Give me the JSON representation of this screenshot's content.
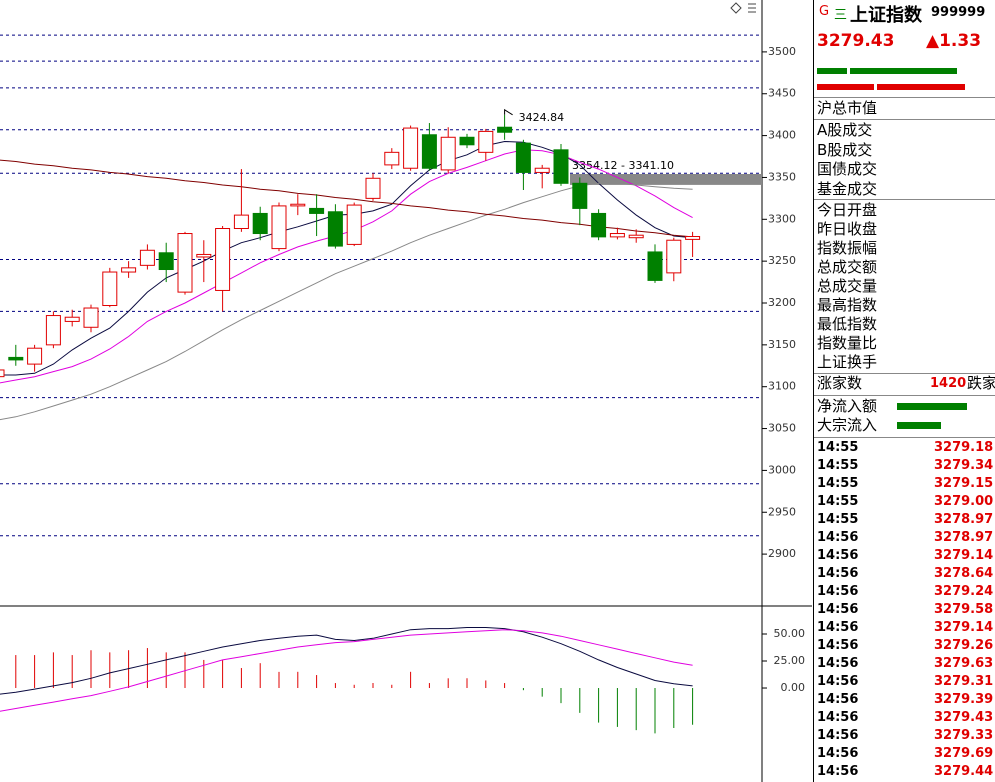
{
  "chart_data": [
    {
      "type": "candlestick",
      "categories": [
        null,
        null,
        null,
        null,
        null,
        null,
        null,
        null,
        null,
        null,
        null,
        null,
        null,
        null,
        null,
        null,
        null,
        null,
        null,
        null,
        null,
        null,
        null,
        null,
        null,
        null,
        null,
        null,
        null,
        null,
        null,
        null,
        null,
        null,
        null,
        null,
        null,
        null
      ],
      "open": [
        3112,
        3135,
        3127,
        3150,
        3178,
        3171,
        3197,
        3237,
        3245,
        3260,
        3213,
        3255,
        3215,
        3289,
        3307,
        3265,
        3316,
        3313,
        3309,
        3270,
        3325,
        3365,
        3361,
        3401,
        3359,
        3398,
        3380,
        3410,
        3391,
        3356,
        3383,
        3343,
        3307,
        3279,
        3278,
        3261,
        3236,
        3276
      ],
      "high": [
        3125,
        3150,
        3150,
        3190,
        3192,
        3198,
        3242,
        3250,
        3270,
        3272,
        3285,
        3275,
        3292,
        3360,
        3315,
        3320,
        3330,
        3330,
        3318,
        3320,
        3355,
        3385,
        3412,
        3415,
        3410,
        3402,
        3408,
        3424.84,
        3395,
        3365,
        3390,
        3350,
        3312,
        3290,
        3288,
        3270,
        3278,
        3285
      ],
      "low": [
        3108,
        3125,
        3118,
        3146,
        3172,
        3165,
        3195,
        3230,
        3240,
        3225,
        3210,
        3225,
        3190,
        3285,
        3275,
        3262,
        3305,
        3280,
        3265,
        3268,
        3322,
        3360,
        3358,
        3358,
        3355,
        3385,
        3370,
        3395,
        3335,
        3337,
        3340,
        3293,
        3275,
        3276,
        3272,
        3224,
        3226,
        3255
      ],
      "close": [
        3120,
        3132,
        3146,
        3185,
        3183,
        3194,
        3237,
        3242,
        3263,
        3240,
        3283,
        3258,
        3289,
        3305,
        3283,
        3316,
        3318,
        3307,
        3268,
        3317,
        3349,
        3380,
        3409,
        3361,
        3398,
        3389,
        3405,
        3404,
        3356,
        3361,
        3343,
        3313,
        3279,
        3283,
        3281,
        3227,
        3275,
        3279.43
      ],
      "up_color": "#e00000",
      "down_color": "#008000",
      "series": [
        {
          "color": "#0a0a40",
          "values": [
            3114,
            3114,
            3116,
            3127,
            3144,
            3158,
            3170,
            3190,
            3213,
            3230,
            3240,
            3250,
            3262,
            3272,
            3278,
            3285,
            3291,
            3298,
            3305,
            3306,
            3310,
            3318,
            3340,
            3359,
            3370,
            3377,
            3388,
            3393,
            3392,
            3386,
            3378,
            3365,
            3343,
            3323,
            3305,
            3290,
            3280,
            3278
          ]
        },
        {
          "color": "#e000e0",
          "values": [
            3104,
            3108,
            3112,
            3118,
            3124,
            3133,
            3145,
            3160,
            3178,
            3190,
            3200,
            3212,
            3224,
            3236,
            3248,
            3258,
            3267,
            3274,
            3280,
            3287,
            3297,
            3310,
            3330,
            3345,
            3355,
            3362,
            3370,
            3378,
            3383,
            3382,
            3377,
            3368,
            3360,
            3350,
            3340,
            3328,
            3314,
            3302
          ]
        },
        {
          "color": "#888888",
          "values": [
            3060,
            3064,
            3070,
            3077,
            3084,
            3091,
            3100,
            3110,
            3120,
            3130,
            3142,
            3155,
            3168,
            3180,
            3191,
            3202,
            3213,
            3224,
            3235,
            3244,
            3253,
            3262,
            3272,
            3281,
            3289,
            3297,
            3305,
            3312,
            3320,
            3327,
            3334,
            3340,
            3343,
            3343,
            3341,
            3339,
            3337,
            3336
          ]
        },
        {
          "color": "#800000",
          "values": [
            3371,
            3369,
            3366,
            3364,
            3361,
            3359,
            3356,
            3354,
            3351,
            3349,
            3346,
            3344,
            3341,
            3339,
            3336,
            3334,
            3331,
            3329,
            3326,
            3324,
            3321,
            3319,
            3316,
            3314,
            3311,
            3309,
            3306,
            3304,
            3301,
            3299,
            3296,
            3294,
            3291,
            3289,
            3286,
            3284,
            3281,
            3279
          ]
        }
      ],
      "level_lines": [
        3520,
        3489,
        3457,
        3407,
        3355,
        3252,
        3190,
        3087,
        2984,
        2922
      ],
      "level_color": "#000080",
      "band": [
        3354.12,
        3341.1
      ],
      "band_label": "3354.12 - 3341.10",
      "ylim": [
        2838,
        3562
      ],
      "yticks": [
        2900,
        2950,
        3000,
        3050,
        3100,
        3150,
        3200,
        3250,
        3300,
        3350,
        3400,
        3450,
        3500
      ]
    },
    {
      "type": "macd",
      "values": [
        28,
        30.5,
        30.5,
        33,
        30.5,
        35,
        33,
        35,
        37,
        33,
        33,
        26,
        26,
        18.5,
        23,
        15,
        15,
        12,
        4.6,
        3,
        4.6,
        3,
        15,
        4.6,
        9,
        9,
        7,
        4.6,
        -2,
        -8,
        -14,
        -23,
        -32,
        -36,
        -39,
        -42,
        -37,
        -34
      ],
      "series": [
        {
          "color": "#0a0a40",
          "values": [
            -6,
            -4,
            -1,
            2,
            5,
            9,
            14,
            18,
            22,
            26,
            30,
            34,
            38,
            41,
            44,
            46,
            48,
            49,
            45,
            44,
            46,
            50,
            54,
            55,
            55,
            56,
            56,
            55,
            52,
            47,
            41,
            34,
            26,
            19,
            13,
            7,
            4,
            2
          ]
        },
        {
          "color": "#e000e0",
          "values": [
            -22,
            -19,
            -16,
            -13,
            -10,
            -7,
            -3,
            1,
            6,
            11,
            16,
            21,
            26,
            29,
            32,
            35,
            38,
            40,
            42,
            43,
            45,
            47,
            49,
            50,
            51,
            52,
            53,
            54,
            53,
            51,
            48,
            44,
            40,
            36,
            32,
            28,
            24,
            21
          ]
        }
      ],
      "ylim": [
        -87,
        75
      ],
      "yticks": [
        {
          "value": 0,
          "label": "0.00"
        },
        {
          "value": 25,
          "label": "25.00"
        },
        {
          "value": 50,
          "label": "50.00"
        }
      ]
    }
  ],
  "panel": {
    "badges": [
      "G",
      "三"
    ],
    "name": "上证指数",
    "code": "999999",
    "price": "3279.43",
    "change": "▲1.33",
    "market_cap": "沪总市值",
    "volume_labels": [
      "A股成交",
      "B股成交",
      "国债成交",
      "基金成交"
    ],
    "stat_labels": [
      "今日开盘",
      "昨日收盘",
      "指数振幅",
      "总成交额",
      "总成交量",
      "最高指数",
      "最低指数",
      "指数量比",
      "上证换手"
    ],
    "advance_label": "涨家数",
    "advance_count": "1420",
    "decline_label": "跌家",
    "flow_labels": [
      "净流入额",
      "大宗流入"
    ],
    "ticks": [
      {
        "time": "14:55",
        "price": "3279.18"
      },
      {
        "time": "14:55",
        "price": "3279.34"
      },
      {
        "time": "14:55",
        "price": "3279.15"
      },
      {
        "time": "14:55",
        "price": "3279.00"
      },
      {
        "time": "14:55",
        "price": "3278.97"
      },
      {
        "time": "14:56",
        "price": "3278.97"
      },
      {
        "time": "14:56",
        "price": "3279.14"
      },
      {
        "time": "14:56",
        "price": "3278.64"
      },
      {
        "time": "14:56",
        "price": "3279.24"
      },
      {
        "time": "14:56",
        "price": "3279.58"
      },
      {
        "time": "14:56",
        "price": "3279.14"
      },
      {
        "time": "14:56",
        "price": "3279.26"
      },
      {
        "time": "14:56",
        "price": "3279.63"
      },
      {
        "time": "14:56",
        "price": "3279.31"
      },
      {
        "time": "14:56",
        "price": "3279.39"
      },
      {
        "time": "14:56",
        "price": "3279.43"
      },
      {
        "time": "14:56",
        "price": "3279.33"
      },
      {
        "time": "14:56",
        "price": "3279.69"
      },
      {
        "time": "14:56",
        "price": "3279.44"
      }
    ]
  }
}
